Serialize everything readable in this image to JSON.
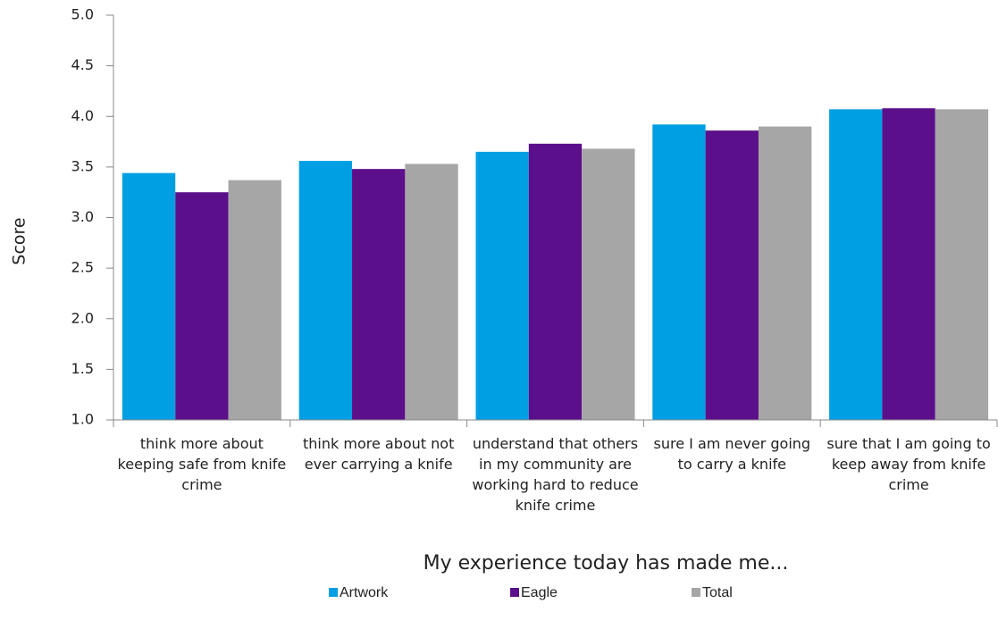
{
  "chart_data": {
    "type": "bar",
    "y_label": "Score",
    "x_label": "My experience today has made me...",
    "categories": [
      "think more about keeping safe from knife crime",
      "think more about not ever carrying a knife",
      "understand that others in my community are working hard to reduce knife crime",
      "sure I am never going to carry a knife",
      "sure that I am going to keep away from knife crime"
    ],
    "series": [
      {
        "name": "Artwork",
        "color": "#009fe3",
        "values": [
          3.44,
          3.56,
          3.65,
          3.92,
          4.07
        ]
      },
      {
        "name": "Eagle",
        "color": "#5c0f8b",
        "values": [
          3.25,
          3.48,
          3.73,
          3.86,
          4.08
        ]
      },
      {
        "name": "Total",
        "color": "#a6a6a6",
        "values": [
          3.37,
          3.53,
          3.68,
          3.9,
          4.07
        ]
      }
    ],
    "ylim": [
      1.0,
      5.0
    ],
    "yticks": [
      {
        "value": 1.0,
        "label": "1.0"
      },
      {
        "value": 1.5,
        "label": "1.5"
      },
      {
        "value": 2.0,
        "label": "2.0"
      },
      {
        "value": 2.5,
        "label": "2.5"
      },
      {
        "value": 3.0,
        "label": "3.0"
      },
      {
        "value": 3.5,
        "label": "3.5"
      },
      {
        "value": 4.0,
        "label": "4.0"
      },
      {
        "value": 4.5,
        "label": "4.5"
      },
      {
        "value": 5.0,
        "label": "5.0"
      }
    ],
    "grid": false,
    "legend": "bottom"
  }
}
